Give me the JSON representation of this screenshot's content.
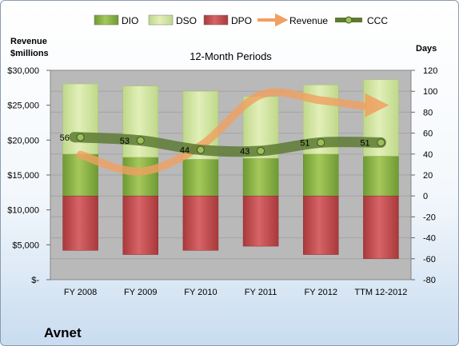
{
  "chart_data": {
    "type": "bar",
    "title": "12-Month Periods",
    "company": "Avnet",
    "ylabel_left": [
      "Revenue",
      "$millions"
    ],
    "ylabel_right": "Days",
    "categories": [
      "FY 2008",
      "FY 2009",
      "FY 2010",
      "FY 2011",
      "FY 2012",
      "TTM 12-2012"
    ],
    "ylim_left": [
      0,
      30000
    ],
    "ylim_right": [
      -80,
      120
    ],
    "left_ticks": [
      0,
      5000,
      10000,
      15000,
      20000,
      25000,
      30000
    ],
    "left_tick_labels": [
      "$-",
      "$5,000",
      "$10,000",
      "$15,000",
      "$20,000",
      "$25,000",
      "$30,000"
    ],
    "right_ticks": [
      -80,
      -60,
      -40,
      -20,
      0,
      20,
      40,
      60,
      80,
      100,
      120
    ],
    "legend": [
      "DIO",
      "DSO",
      "DPO",
      "Revenue",
      "CCC"
    ],
    "legend_position": "top",
    "series": [
      {
        "name": "DIO",
        "axis": "right",
        "values": [
          40,
          37,
          35,
          36,
          40,
          38
        ]
      },
      {
        "name": "DSO",
        "axis": "right",
        "values": [
          67,
          68,
          65,
          59,
          66,
          73
        ]
      },
      {
        "name": "DPO",
        "axis": "right",
        "values": [
          -52,
          -56,
          -52,
          -48,
          -56,
          -60
        ]
      },
      {
        "name": "Revenue",
        "axis": "left",
        "values": [
          17900,
          15500,
          19200,
          26500,
          25700,
          25000
        ]
      },
      {
        "name": "CCC",
        "axis": "right",
        "values": [
          56,
          53,
          44,
          43,
          51,
          51
        ],
        "labels": [
          "56",
          "53",
          "44",
          "43",
          "51",
          "51"
        ]
      }
    ],
    "colors": {
      "DIO": "#7da642",
      "DSO": "#cfe29a",
      "DPO": "#c04648",
      "Revenue": "#f0a060",
      "CCC": "#5d7a34"
    }
  }
}
